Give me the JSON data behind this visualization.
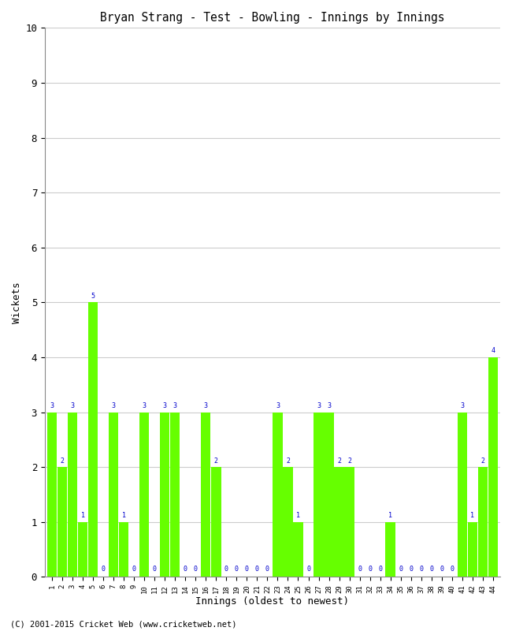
{
  "title": "Bryan Strang - Test - Bowling - Innings by Innings",
  "xlabel": "Innings (oldest to newest)",
  "ylabel": "Wickets",
  "bar_color": "#66ff00",
  "label_color": "#0000cc",
  "background_color": "#ffffff",
  "grid_color": "#cccccc",
  "ylim": [
    0,
    10
  ],
  "yticks": [
    0,
    1,
    2,
    3,
    4,
    5,
    6,
    7,
    8,
    9,
    10
  ],
  "copyright": "(C) 2001-2015 Cricket Web (www.cricketweb.net)",
  "innings": [
    1,
    2,
    3,
    4,
    5,
    6,
    7,
    8,
    9,
    10,
    11,
    12,
    13,
    14,
    15,
    16,
    17,
    18,
    19,
    20,
    21,
    22,
    23,
    24,
    25,
    26,
    27,
    28,
    29,
    30,
    31,
    32,
    33,
    34,
    35,
    36,
    37,
    38,
    39,
    40,
    41,
    42,
    43,
    44
  ],
  "wickets": [
    3,
    2,
    3,
    1,
    5,
    0,
    3,
    1,
    0,
    3,
    0,
    3,
    3,
    0,
    0,
    3,
    2,
    0,
    0,
    0,
    0,
    0,
    3,
    2,
    1,
    0,
    3,
    3,
    2,
    2,
    0,
    0,
    0,
    1,
    0,
    0,
    0,
    0,
    0,
    0,
    3,
    1,
    2,
    4
  ]
}
